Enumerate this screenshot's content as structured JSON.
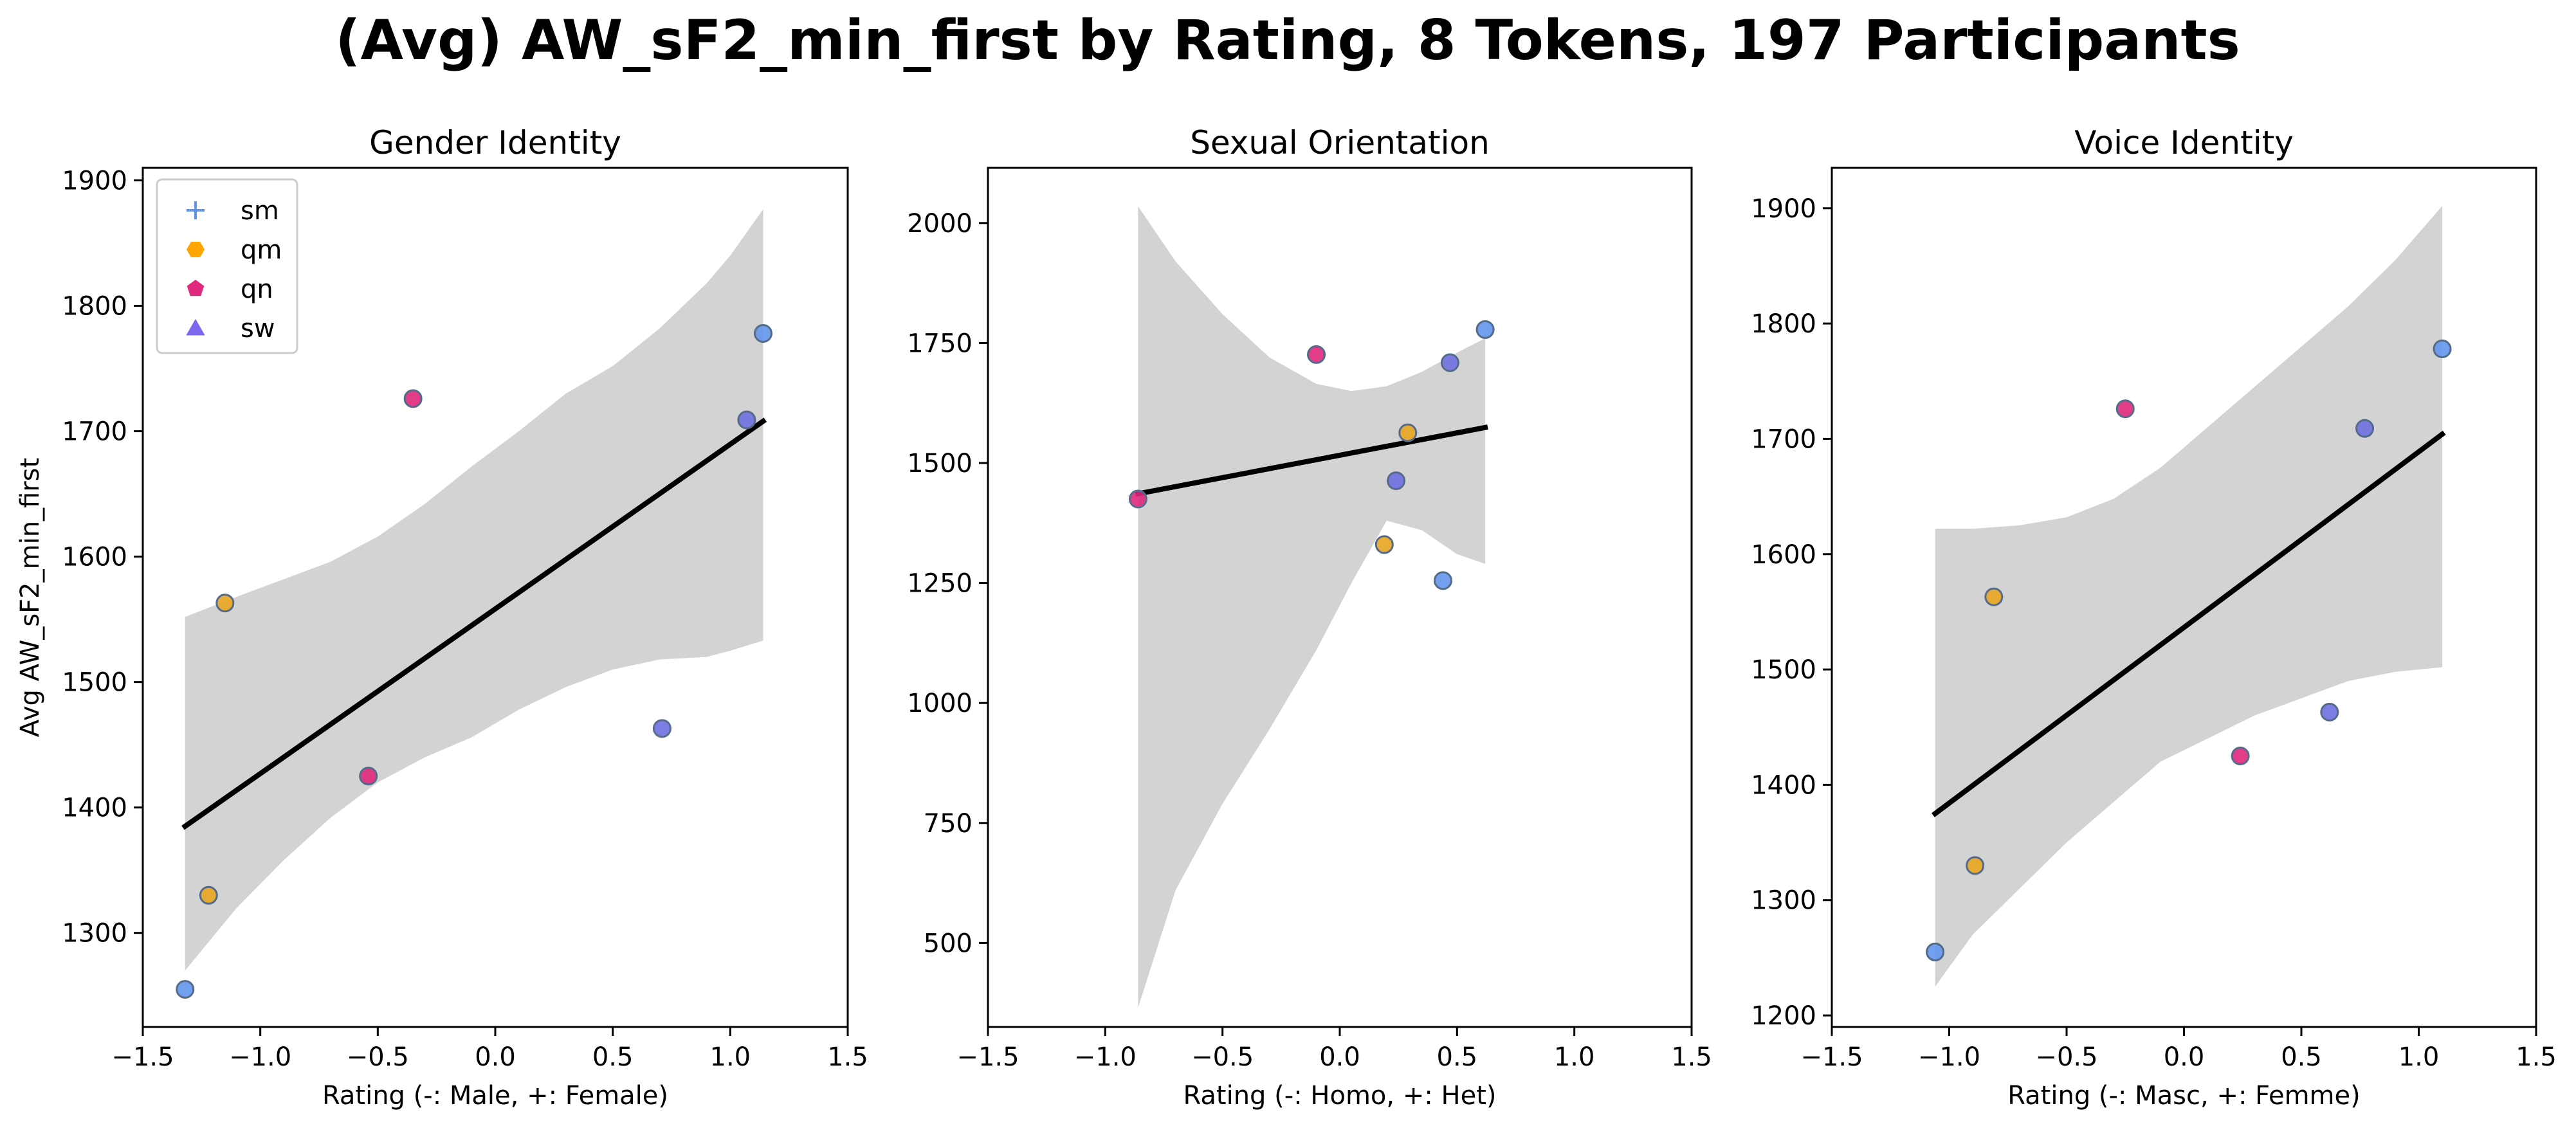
{
  "suptitle": "(Avg) AW_sF2_min_first by Rating, 8 Tokens, 197 Participants",
  "legend": {
    "placement": "upper-left of first panel",
    "entries": [
      {
        "label": "sm",
        "marker": "plus",
        "color": "#6495ED"
      },
      {
        "label": "qm",
        "marker": "hexagon",
        "color": "#FFA500"
      },
      {
        "label": "qn",
        "marker": "pentagon",
        "color": "#E0287D"
      },
      {
        "label": "sw",
        "marker": "triangle",
        "color": "#7B68EE"
      }
    ]
  },
  "colors": {
    "sm": "#6495ED",
    "qm": "#E8A520",
    "qn": "#E0287D",
    "sw": "#6F6FE0",
    "point_edge": "#556B8A",
    "fit_line": "#000000",
    "ci_band": "#D3D3D3"
  },
  "chart_data": [
    {
      "type": "scatter",
      "title": "Gender Identity",
      "xlabel": "Rating (-: Male, +: Female)",
      "ylabel": "Avg AW_sF2_min_first",
      "xlim": [
        -1.5,
        1.5
      ],
      "ylim": [
        1225,
        1910
      ],
      "xticks": [
        -1.5,
        -1.0,
        -0.5,
        0.0,
        0.5,
        1.0,
        1.5
      ],
      "xtick_labels": [
        "−1.5",
        "−1.0",
        "−0.5",
        "0.0",
        "0.5",
        "1.0",
        "1.5"
      ],
      "yticks": [
        1300,
        1400,
        1500,
        1600,
        1700,
        1800,
        1900
      ],
      "ytick_labels": [
        "1300",
        "1400",
        "1500",
        "1600",
        "1700",
        "1800",
        "1900"
      ],
      "grid": false,
      "points": [
        {
          "x": -1.32,
          "y": 1255,
          "group": "sm"
        },
        {
          "x": -1.22,
          "y": 1330,
          "group": "qm"
        },
        {
          "x": -1.15,
          "y": 1563,
          "group": "qm"
        },
        {
          "x": -0.54,
          "y": 1425,
          "group": "qn"
        },
        {
          "x": -0.35,
          "y": 1726,
          "group": "qn"
        },
        {
          "x": 0.71,
          "y": 1463,
          "group": "sw"
        },
        {
          "x": 1.07,
          "y": 1709,
          "group": "sw"
        },
        {
          "x": 1.14,
          "y": 1778,
          "group": "sm"
        }
      ],
      "fit_line": {
        "x": [
          -1.32,
          1.14
        ],
        "y": [
          1385,
          1708
        ]
      },
      "ci_band": {
        "x": [
          -1.32,
          -1.1,
          -0.9,
          -0.7,
          -0.5,
          -0.3,
          -0.1,
          0.1,
          0.3,
          0.5,
          0.7,
          0.9,
          1.0,
          1.14
        ],
        "upper": [
          1552,
          1568,
          1582,
          1596,
          1616,
          1642,
          1672,
          1700,
          1730,
          1752,
          1782,
          1818,
          1840,
          1877
        ],
        "lower": [
          1270,
          1320,
          1358,
          1392,
          1420,
          1440,
          1456,
          1478,
          1496,
          1510,
          1518,
          1520,
          1525,
          1533
        ]
      }
    },
    {
      "type": "scatter",
      "title": "Sexual Orientation",
      "xlabel": "Rating (-: Homo, +: Het)",
      "ylabel": "",
      "xlim": [
        -1.5,
        1.5
      ],
      "ylim": [
        325,
        2115
      ],
      "xticks": [
        -1.5,
        -1.0,
        -0.5,
        0.0,
        0.5,
        1.0,
        1.5
      ],
      "xtick_labels": [
        "−1.5",
        "−1.0",
        "−0.5",
        "0.0",
        "0.5",
        "1.0",
        "1.5"
      ],
      "yticks": [
        500,
        750,
        1000,
        1250,
        1500,
        1750,
        2000
      ],
      "ytick_labels": [
        "500",
        "750",
        "1000",
        "1250",
        "1500",
        "1750",
        "2000"
      ],
      "grid": false,
      "points": [
        {
          "x": -0.86,
          "y": 1425,
          "group": "qn"
        },
        {
          "x": -0.1,
          "y": 1726,
          "group": "qn"
        },
        {
          "x": 0.19,
          "y": 1330,
          "group": "qm"
        },
        {
          "x": 0.24,
          "y": 1463,
          "group": "sw"
        },
        {
          "x": 0.29,
          "y": 1563,
          "group": "qm"
        },
        {
          "x": 0.44,
          "y": 1255,
          "group": "sm"
        },
        {
          "x": 0.47,
          "y": 1709,
          "group": "sw"
        },
        {
          "x": 0.62,
          "y": 1778,
          "group": "sm"
        }
      ],
      "fit_line": {
        "x": [
          -0.86,
          0.62
        ],
        "y": [
          1436,
          1574
        ]
      },
      "ci_band": {
        "x": [
          -0.86,
          -0.7,
          -0.5,
          -0.3,
          -0.1,
          0.05,
          0.2,
          0.35,
          0.5,
          0.62
        ],
        "upper": [
          2035,
          1920,
          1810,
          1720,
          1665,
          1650,
          1660,
          1690,
          1730,
          1760
        ],
        "lower": [
          365,
          610,
          790,
          945,
          1110,
          1250,
          1380,
          1360,
          1310,
          1290
        ]
      }
    },
    {
      "type": "scatter",
      "title": "Voice Identity",
      "xlabel": "Rating (-: Masc, +: Femme)",
      "ylabel": "",
      "xlim": [
        -1.5,
        1.5
      ],
      "ylim": [
        1190,
        1935
      ],
      "xticks": [
        -1.5,
        -1.0,
        -0.5,
        0.0,
        0.5,
        1.0,
        1.5
      ],
      "xtick_labels": [
        "−1.5",
        "−1.0",
        "−0.5",
        "0.0",
        "0.5",
        "1.0",
        "1.5"
      ],
      "yticks": [
        1200,
        1300,
        1400,
        1500,
        1600,
        1700,
        1800,
        1900
      ],
      "ytick_labels": [
        "1200",
        "1300",
        "1400",
        "1500",
        "1600",
        "1700",
        "1800",
        "1900"
      ],
      "grid": false,
      "points": [
        {
          "x": -1.06,
          "y": 1255,
          "group": "sm"
        },
        {
          "x": -0.89,
          "y": 1330,
          "group": "qm"
        },
        {
          "x": -0.81,
          "y": 1563,
          "group": "qm"
        },
        {
          "x": -0.25,
          "y": 1726,
          "group": "qn"
        },
        {
          "x": 0.24,
          "y": 1425,
          "group": "qn"
        },
        {
          "x": 0.62,
          "y": 1463,
          "group": "sw"
        },
        {
          "x": 0.77,
          "y": 1709,
          "group": "sw"
        },
        {
          "x": 1.1,
          "y": 1778,
          "group": "sm"
        }
      ],
      "fit_line": {
        "x": [
          -1.06,
          1.1
        ],
        "y": [
          1375,
          1704
        ]
      },
      "ci_band": {
        "x": [
          -1.06,
          -0.9,
          -0.7,
          -0.5,
          -0.3,
          -0.1,
          0.1,
          0.3,
          0.5,
          0.7,
          0.9,
          1.1
        ],
        "upper": [
          1622,
          1622,
          1625,
          1632,
          1648,
          1675,
          1710,
          1745,
          1780,
          1815,
          1855,
          1902
        ],
        "lower": [
          1225,
          1270,
          1310,
          1350,
          1385,
          1420,
          1440,
          1460,
          1475,
          1490,
          1498,
          1502
        ]
      }
    }
  ]
}
